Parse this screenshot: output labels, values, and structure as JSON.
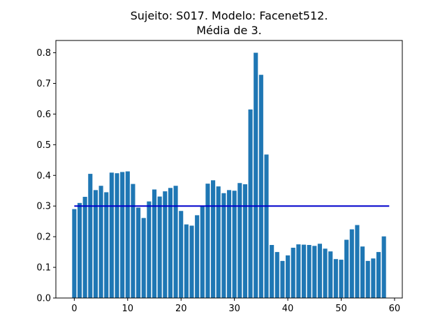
{
  "chart_data": {
    "type": "bar",
    "title_lines": [
      "Sujeito: S017. Modelo: Facenet512.",
      "Média de 3."
    ],
    "xlabel": "",
    "ylabel": "",
    "x": [
      0,
      1,
      2,
      3,
      4,
      5,
      6,
      7,
      8,
      9,
      10,
      11,
      12,
      13,
      14,
      15,
      16,
      17,
      18,
      19,
      20,
      21,
      22,
      23,
      24,
      25,
      26,
      27,
      28,
      29,
      30,
      31,
      32,
      33,
      34,
      35,
      36,
      37,
      38,
      39,
      40,
      41,
      42,
      43,
      44,
      45,
      46,
      47,
      48,
      49,
      50,
      51,
      52,
      53,
      54,
      55,
      56,
      57,
      58
    ],
    "values": [
      0.29,
      0.31,
      0.33,
      0.405,
      0.352,
      0.366,
      0.345,
      0.409,
      0.407,
      0.411,
      0.413,
      0.372,
      0.295,
      0.261,
      0.315,
      0.354,
      0.331,
      0.348,
      0.359,
      0.366,
      0.284,
      0.24,
      0.236,
      0.27,
      0.3,
      0.373,
      0.384,
      0.364,
      0.342,
      0.352,
      0.35,
      0.375,
      0.371,
      0.615,
      0.8,
      0.728,
      0.468,
      0.173,
      0.15,
      0.121,
      0.139,
      0.164,
      0.175,
      0.174,
      0.173,
      0.17,
      0.177,
      0.161,
      0.152,
      0.127,
      0.125,
      0.19,
      0.224,
      0.238,
      0.168,
      0.121,
      0.129,
      0.15,
      0.201
    ],
    "bar_color": "#1f77b4",
    "threshold": {
      "value": 0.3,
      "x_start": 0,
      "x_end": 59,
      "color": "#0000cc"
    },
    "xlim": [
      -3.45,
      61.45
    ],
    "ylim": [
      0,
      0.84
    ],
    "xticks": [
      0,
      10,
      20,
      30,
      40,
      50,
      60
    ],
    "xtick_labels": [
      "0",
      "10",
      "20",
      "30",
      "40",
      "50",
      "60"
    ],
    "yticks": [
      0,
      0.1,
      0.2,
      0.3,
      0.4,
      0.5,
      0.6,
      0.7,
      0.8
    ],
    "ytick_labels": [
      "0.0",
      "0.1",
      "0.2",
      "0.3",
      "0.4",
      "0.5",
      "0.6",
      "0.7",
      "0.8"
    ],
    "grid": false
  }
}
